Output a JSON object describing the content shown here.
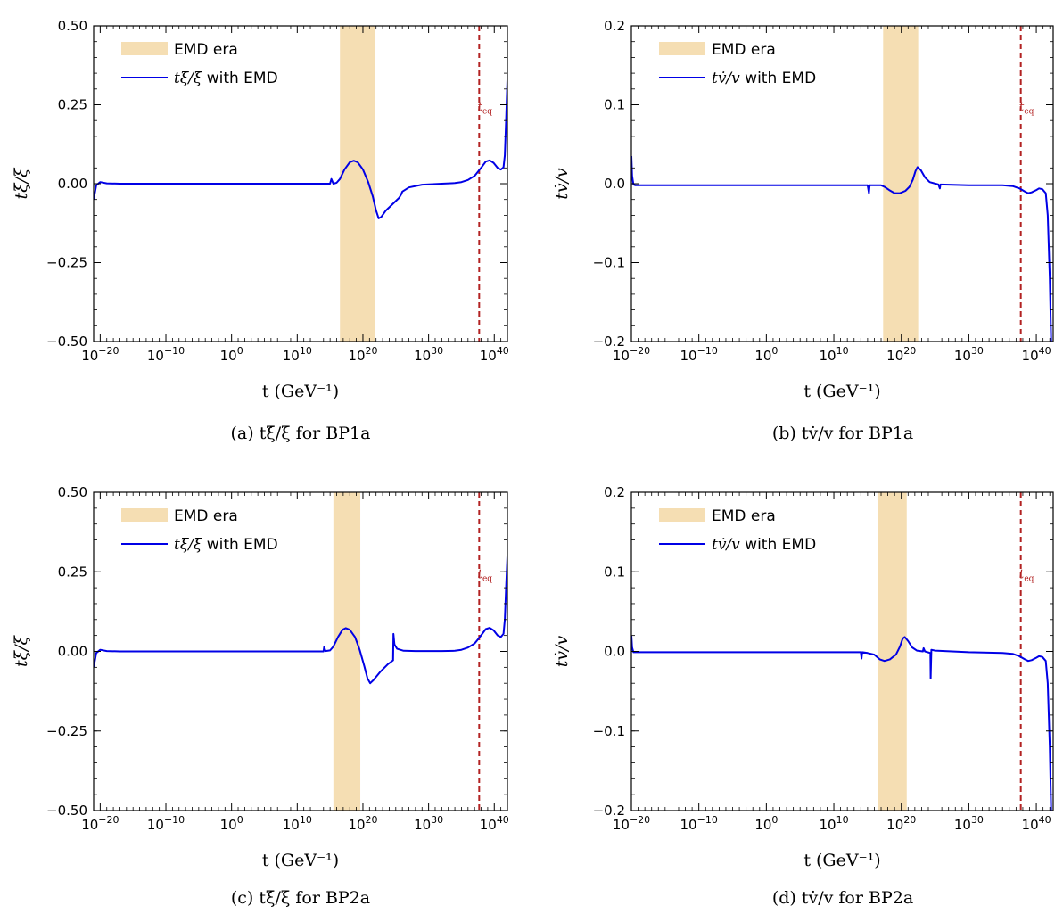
{
  "chart_data": [
    {
      "type": "line",
      "caption": "(a) tξ̇/ξ for BP1a",
      "xlabel": "t (GeV⁻¹)",
      "ylabel": "tξ̇/ξ",
      "xscale": "log",
      "xlim_log10": [
        -21,
        42
      ],
      "ylim": [
        -0.5,
        0.5
      ],
      "xticks_log10": [
        -20,
        -10,
        0,
        10,
        20,
        30,
        40
      ],
      "yticks": [
        -0.5,
        -0.25,
        0.0,
        0.25,
        0.5
      ],
      "ytick_labels": [
        "−0.50",
        "−0.25",
        "0.00",
        "0.25",
        "0.50"
      ],
      "legend": {
        "placement": "upper-left",
        "band_label": "EMD era",
        "line_label_math": "tξ̇/ξ",
        "line_label_text": " with EMD"
      },
      "emd_band_log10": [
        16.5,
        21.8
      ],
      "t_eq_log10": 37.7,
      "annotation": "t_eq",
      "series": [
        {
          "points_log10t": [
            [
              -21,
              -0.05
            ],
            [
              -20.6,
              -0.005
            ],
            [
              -20,
              0.005
            ],
            [
              -19,
              0.001
            ],
            [
              -17,
              0
            ],
            [
              10,
              0
            ],
            [
              15,
              0
            ],
            [
              15.2,
              0.015
            ],
            [
              15.5,
              0
            ],
            [
              16,
              0.003
            ],
            [
              16.5,
              0.015
            ],
            [
              17.2,
              0.045
            ],
            [
              18,
              0.068
            ],
            [
              18.6,
              0.073
            ],
            [
              19.2,
              0.068
            ],
            [
              20,
              0.045
            ],
            [
              20.8,
              0.005
            ],
            [
              21.5,
              -0.04
            ],
            [
              22,
              -0.085
            ],
            [
              22.4,
              -0.11
            ],
            [
              22.8,
              -0.105
            ],
            [
              23.5,
              -0.085
            ],
            [
              24.5,
              -0.065
            ],
            [
              25.5,
              -0.045
            ],
            [
              25.8,
              -0.035
            ],
            [
              26,
              -0.025
            ],
            [
              27,
              -0.012
            ],
            [
              29,
              -0.003
            ],
            [
              32,
              0
            ],
            [
              34,
              0.002
            ],
            [
              35,
              0.005
            ],
            [
              36,
              0.012
            ],
            [
              37,
              0.025
            ],
            [
              37.6,
              0.04
            ],
            [
              38.2,
              0.056
            ],
            [
              38.7,
              0.07
            ],
            [
              39.3,
              0.074
            ],
            [
              39.9,
              0.066
            ],
            [
              40.5,
              0.05
            ],
            [
              41,
              0.045
            ],
            [
              41.4,
              0.052
            ],
            [
              41.6,
              0.09
            ],
            [
              41.8,
              0.2
            ],
            [
              42,
              0.33
            ]
          ]
        }
      ]
    },
    {
      "type": "line",
      "caption": "(b) tv̇/v for BP1a",
      "xlabel": "t (GeV⁻¹)",
      "ylabel": "tv̇/v",
      "xscale": "log",
      "xlim_log10": [
        -20,
        42.5
      ],
      "ylim": [
        -0.2,
        0.2
      ],
      "xticks_log10": [
        -20,
        -10,
        0,
        10,
        20,
        30,
        40
      ],
      "yticks": [
        -0.2,
        -0.1,
        0.0,
        0.1,
        0.2
      ],
      "ytick_labels": [
        "−0.2",
        "−0.1",
        "0.0",
        "0.1",
        "0.2"
      ],
      "legend": {
        "placement": "upper-left",
        "band_label": "EMD era",
        "line_label_math": "tv̇/v",
        "line_label_text": " with EMD"
      },
      "emd_band_log10": [
        17.3,
        22.5
      ],
      "t_eq_log10": 37.7,
      "annotation": "t_eq",
      "series": [
        {
          "points_log10t": [
            [
              -20,
              0.035
            ],
            [
              -19.9,
              0.01
            ],
            [
              -19.7,
              -0.001
            ],
            [
              -19.4,
              -0.002
            ],
            [
              -15,
              -0.002
            ],
            [
              10,
              -0.002
            ],
            [
              15,
              -0.002
            ],
            [
              15.2,
              -0.012
            ],
            [
              15.3,
              -0.002
            ],
            [
              17,
              -0.002
            ],
            [
              17.5,
              -0.004
            ],
            [
              18.2,
              -0.008
            ],
            [
              19,
              -0.012
            ],
            [
              19.8,
              -0.012
            ],
            [
              20.6,
              -0.009
            ],
            [
              21.2,
              -0.004
            ],
            [
              21.7,
              0.005
            ],
            [
              22.1,
              0.016
            ],
            [
              22.4,
              0.021
            ],
            [
              22.9,
              0.017
            ],
            [
              23.5,
              0.008
            ],
            [
              24.2,
              0.002
            ],
            [
              25.5,
              -0.001
            ],
            [
              25.7,
              -0.006
            ],
            [
              25.8,
              -0.001
            ],
            [
              30,
              -0.002
            ],
            [
              35,
              -0.002
            ],
            [
              36.5,
              -0.003
            ],
            [
              37.5,
              -0.006
            ],
            [
              38.3,
              -0.01
            ],
            [
              38.8,
              -0.012
            ],
            [
              39.3,
              -0.011
            ],
            [
              40,
              -0.008
            ],
            [
              40.4,
              -0.006
            ],
            [
              40.9,
              -0.007
            ],
            [
              41.4,
              -0.012
            ],
            [
              41.7,
              -0.04
            ],
            [
              42,
              -0.12
            ],
            [
              42.2,
              -0.2
            ]
          ]
        }
      ]
    },
    {
      "type": "line",
      "caption": "(c) tξ̇/ξ for BP2a",
      "xlabel": "t (GeV⁻¹)",
      "ylabel": "tξ̇/ξ",
      "xscale": "log",
      "xlim_log10": [
        -21,
        42
      ],
      "ylim": [
        -0.5,
        0.5
      ],
      "xticks_log10": [
        -20,
        -10,
        0,
        10,
        20,
        30,
        40
      ],
      "yticks": [
        -0.5,
        -0.25,
        0.0,
        0.25,
        0.5
      ],
      "ytick_labels": [
        "−0.50",
        "−0.25",
        "0.00",
        "0.25",
        "0.50"
      ],
      "legend": {
        "placement": "upper-left",
        "band_label": "EMD era",
        "line_label_math": "tξ̇/ξ",
        "line_label_text": " with EMD"
      },
      "emd_band_log10": [
        15.5,
        19.6
      ],
      "t_eq_log10": 37.7,
      "annotation": "t_eq",
      "series": [
        {
          "points_log10t": [
            [
              -21,
              -0.05
            ],
            [
              -20.6,
              -0.005
            ],
            [
              -20,
              0.005
            ],
            [
              -19,
              0.001
            ],
            [
              -17,
              0
            ],
            [
              10,
              0
            ],
            [
              14,
              0
            ],
            [
              14.1,
              0.014
            ],
            [
              14.3,
              0.001
            ],
            [
              15,
              0.003
            ],
            [
              15.5,
              0.015
            ],
            [
              16.2,
              0.045
            ],
            [
              16.9,
              0.068
            ],
            [
              17.4,
              0.073
            ],
            [
              18,
              0.068
            ],
            [
              18.8,
              0.045
            ],
            [
              19.5,
              0.005
            ],
            [
              20.2,
              -0.045
            ],
            [
              20.7,
              -0.085
            ],
            [
              21.1,
              -0.1
            ],
            [
              21.6,
              -0.09
            ],
            [
              22.6,
              -0.065
            ],
            [
              23.8,
              -0.04
            ],
            [
              24.6,
              -0.028
            ],
            [
              24.65,
              0.055
            ],
            [
              24.8,
              0.022
            ],
            [
              25.2,
              0.008
            ],
            [
              26.2,
              0.002
            ],
            [
              28,
              0.001
            ],
            [
              32,
              0.001
            ],
            [
              34,
              0.002
            ],
            [
              35,
              0.005
            ],
            [
              36,
              0.012
            ],
            [
              37,
              0.025
            ],
            [
              37.6,
              0.04
            ],
            [
              38.2,
              0.056
            ],
            [
              38.7,
              0.07
            ],
            [
              39.3,
              0.074
            ],
            [
              39.9,
              0.066
            ],
            [
              40.5,
              0.05
            ],
            [
              41,
              0.045
            ],
            [
              41.4,
              0.055
            ],
            [
              41.6,
              0.1
            ],
            [
              41.8,
              0.2
            ],
            [
              42,
              0.3
            ]
          ]
        }
      ]
    },
    {
      "type": "line",
      "caption": "(d) tv̇/v for BP2a",
      "xlabel": "t (GeV⁻¹)",
      "ylabel": "tv̇/v",
      "xscale": "log",
      "xlim_log10": [
        -20,
        42.5
      ],
      "ylim": [
        -0.2,
        0.2
      ],
      "xticks_log10": [
        -20,
        -10,
        0,
        10,
        20,
        30,
        40
      ],
      "yticks": [
        -0.2,
        -0.1,
        0.0,
        0.1,
        0.2
      ],
      "ytick_labels": [
        "−0.2",
        "−0.1",
        "0.0",
        "0.1",
        "0.2"
      ],
      "legend": {
        "placement": "upper-left",
        "band_label": "EMD era",
        "line_label_math": "tv̇/v",
        "line_label_text": " with EMD"
      },
      "emd_band_log10": [
        16.5,
        20.8
      ],
      "t_eq_log10": 37.7,
      "annotation": "t_eq",
      "series": [
        {
          "points_log10t": [
            [
              -20,
              0.02
            ],
            [
              -19.9,
              0.005
            ],
            [
              -19.7,
              -0.001
            ],
            [
              -19.4,
              -0.001
            ],
            [
              -15,
              -0.001
            ],
            [
              10,
              -0.001
            ],
            [
              14,
              -0.001
            ],
            [
              14.1,
              -0.009
            ],
            [
              14.2,
              -0.001
            ],
            [
              15,
              -0.002
            ],
            [
              16,
              -0.004
            ],
            [
              16.8,
              -0.01
            ],
            [
              17.5,
              -0.012
            ],
            [
              18.3,
              -0.01
            ],
            [
              19.2,
              -0.004
            ],
            [
              19.8,
              0.006
            ],
            [
              20.2,
              0.016
            ],
            [
              20.5,
              0.018
            ],
            [
              21,
              0.013
            ],
            [
              21.6,
              0.005
            ],
            [
              22.3,
              0.001
            ],
            [
              23.2,
              0
            ],
            [
              23.3,
              0.004
            ],
            [
              23.5,
              0
            ],
            [
              24.3,
              -0.002
            ],
            [
              24.35,
              -0.034
            ],
            [
              24.45,
              0.002
            ],
            [
              25,
              0.001
            ],
            [
              30,
              -0.001
            ],
            [
              35,
              -0.002
            ],
            [
              36.5,
              -0.003
            ],
            [
              37.5,
              -0.006
            ],
            [
              38.3,
              -0.01
            ],
            [
              38.8,
              -0.012
            ],
            [
              39.3,
              -0.011
            ],
            [
              40,
              -0.008
            ],
            [
              40.4,
              -0.006
            ],
            [
              40.9,
              -0.007
            ],
            [
              41.4,
              -0.012
            ],
            [
              41.7,
              -0.04
            ],
            [
              42,
              -0.12
            ],
            [
              42.2,
              -0.2
            ]
          ]
        }
      ]
    }
  ]
}
